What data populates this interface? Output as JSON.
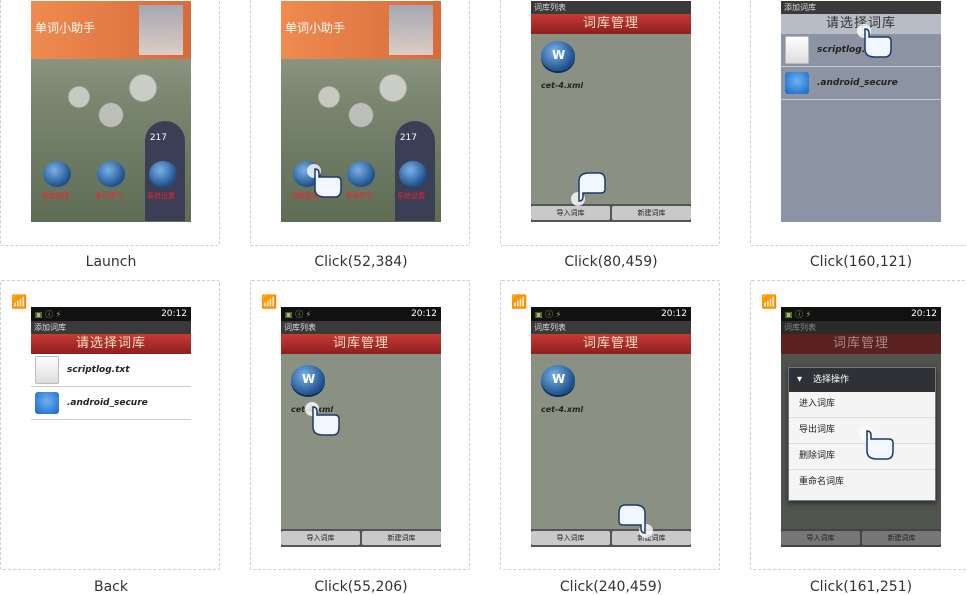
{
  "steps": [
    {
      "caption": "Launch"
    },
    {
      "caption": "Click(52,384)"
    },
    {
      "caption": "Click(80,459)"
    },
    {
      "caption": "Click(160,121)"
    },
    {
      "caption": "Back"
    },
    {
      "caption": "Click(55,206)"
    },
    {
      "caption": "Click(240,459)"
    },
    {
      "caption": "Click(161,251)"
    }
  ],
  "launch": {
    "app_title": "单词小助手",
    "counter": "217",
    "btn_labels": [
      "词库管理",
      "单词学习",
      "系统设置"
    ]
  },
  "status": {
    "time": "20:12"
  },
  "manage": {
    "window_title": "词库列表",
    "header": "词库管理",
    "file": "cet-4.xml",
    "import_btn": "导入词库",
    "new_btn": "新建词库"
  },
  "choose": {
    "window_title": "添加词库",
    "header": "请选择词库",
    "files": [
      "scriptlog.txt",
      ".android_secure"
    ]
  },
  "menu": {
    "title": "选择操作",
    "items": [
      "进入词库",
      "导出词库",
      "删除词库",
      "重命名词库"
    ]
  }
}
